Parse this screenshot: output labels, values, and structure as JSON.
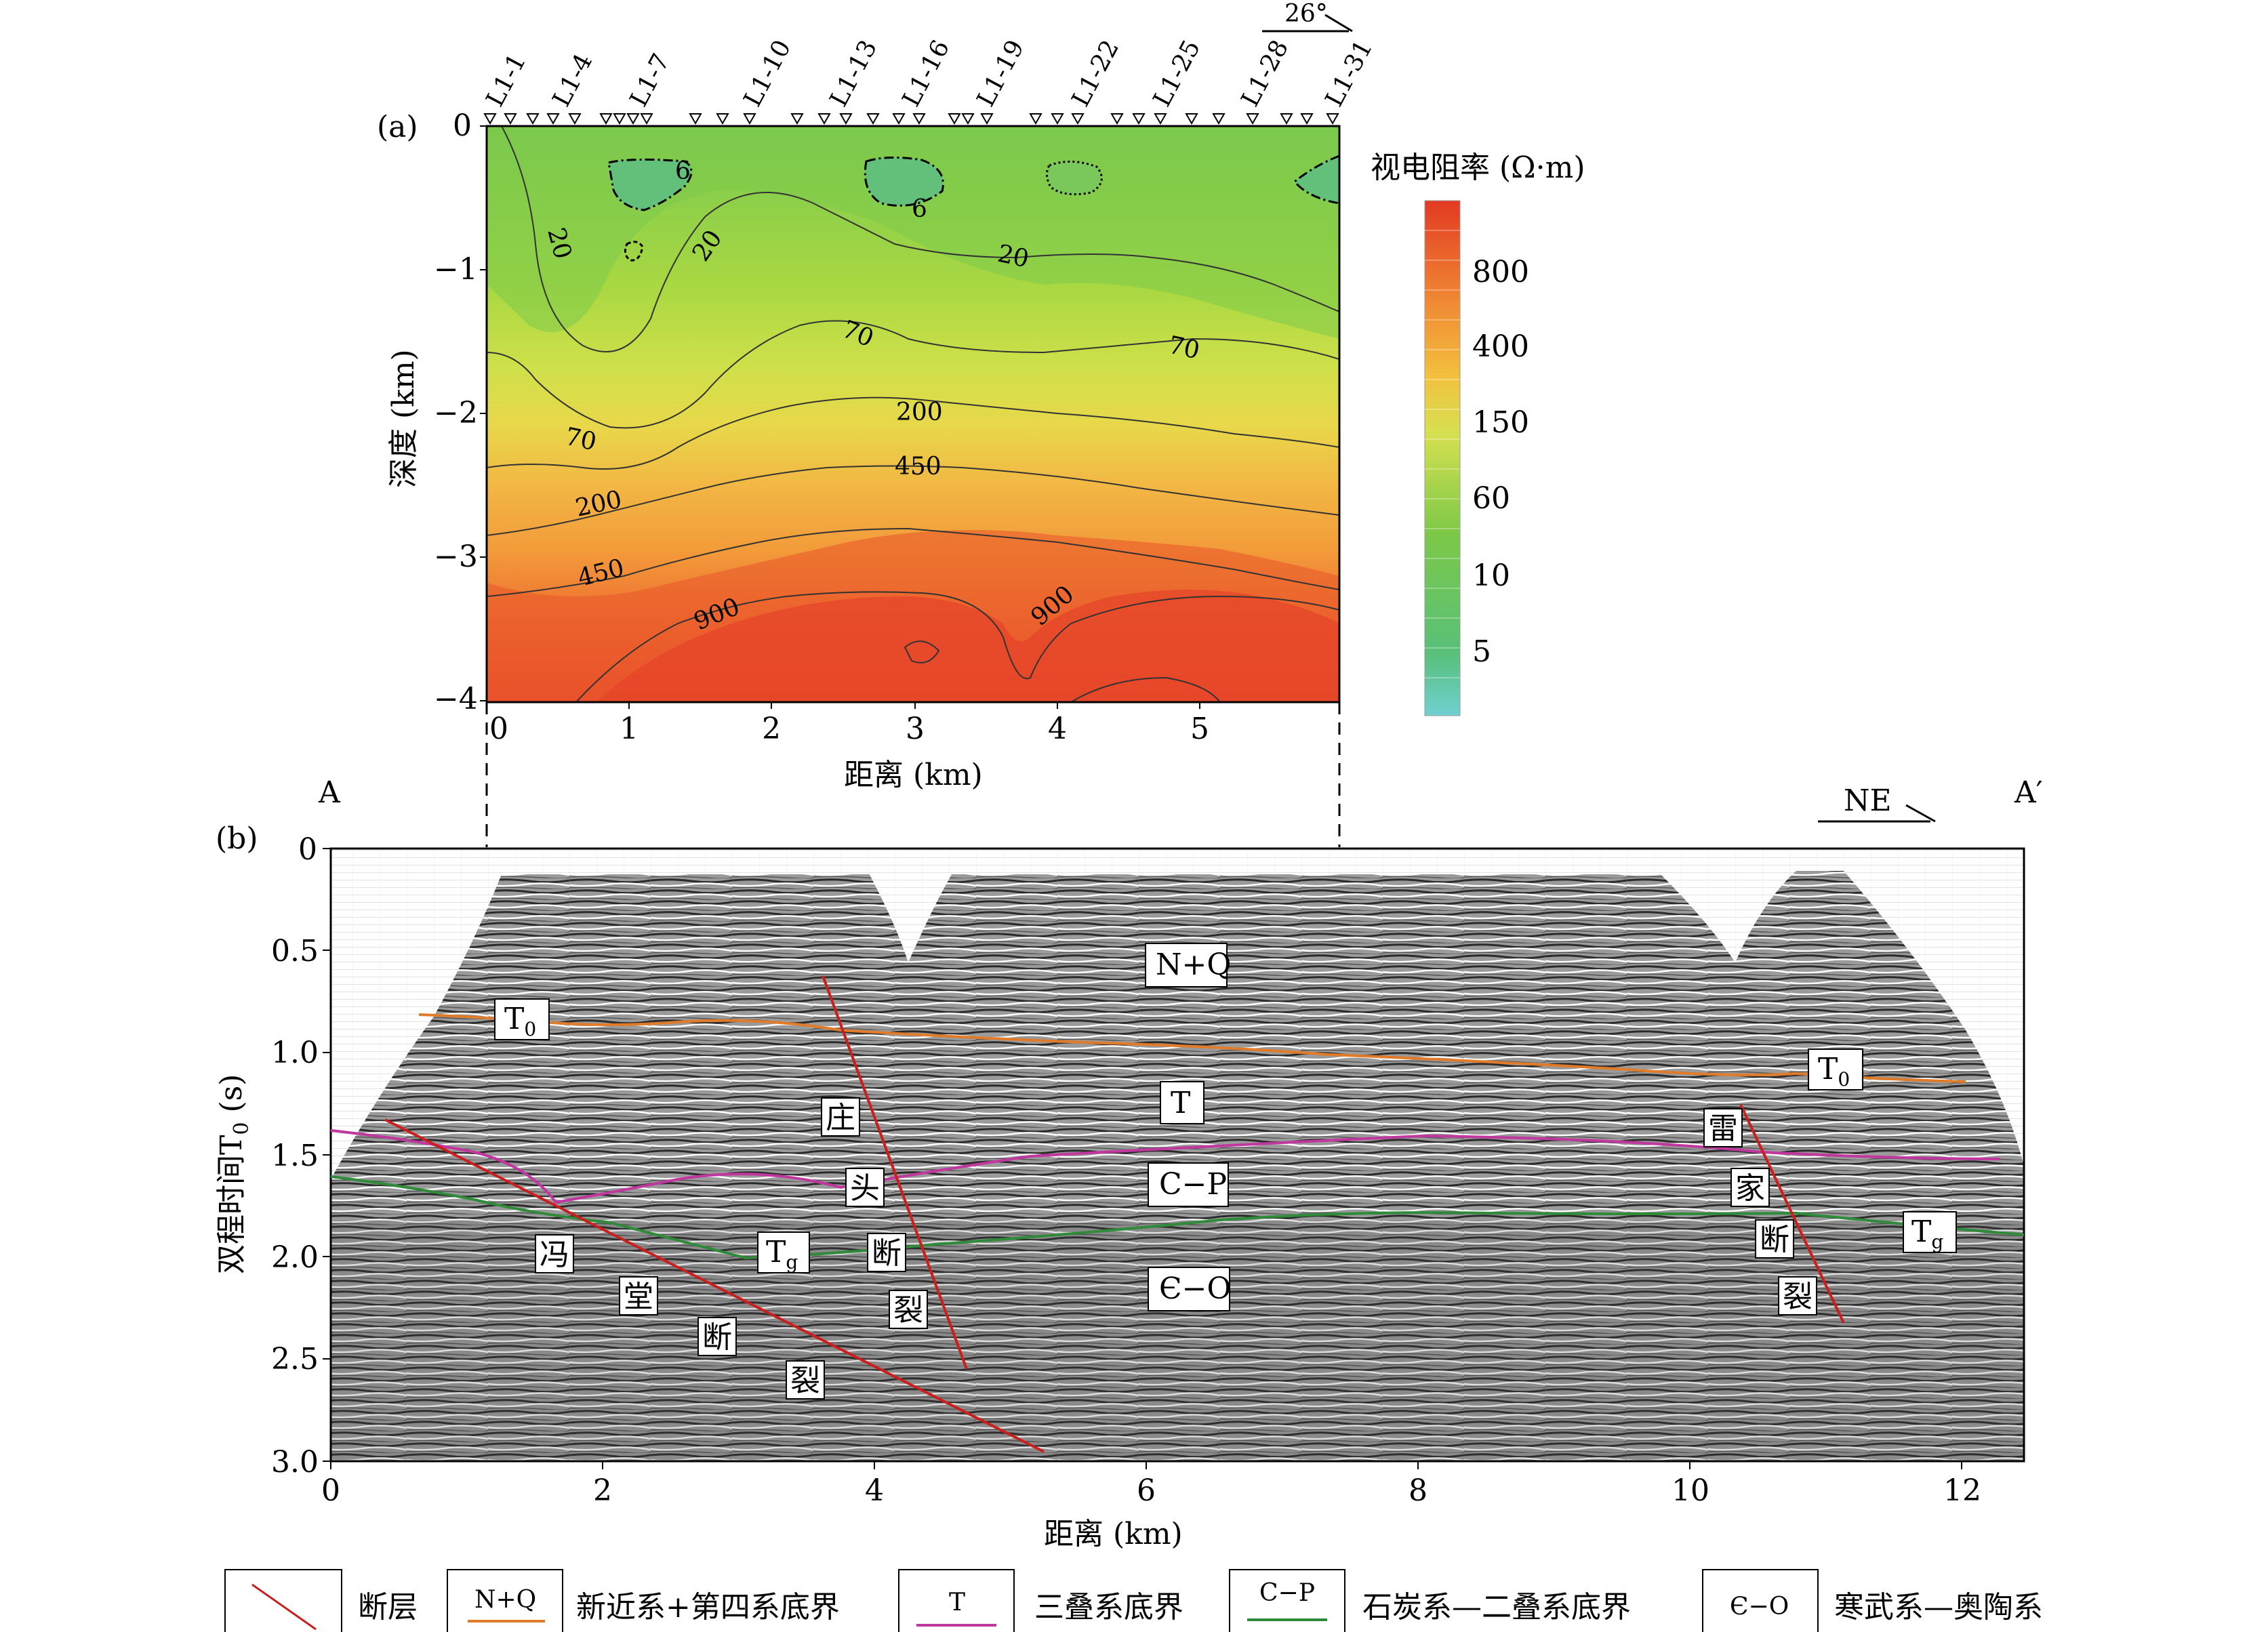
{
  "panel_a": {
    "label": "(a)",
    "orientation": "26°",
    "stations": [
      "L1-1",
      "L1-4",
      "L1-7",
      "L1-10",
      "L1-13",
      "L1-16",
      "L1-19",
      "L1-22",
      "L1-25",
      "L1-28",
      "L1-31"
    ],
    "y_label": "深度 (km)",
    "x_label": "距离 (km)",
    "y_ticks": [
      "0",
      "−1",
      "−2",
      "−3",
      "−4"
    ],
    "x_ticks": [
      "0",
      "1",
      "2",
      "3",
      "4",
      "5"
    ],
    "contour_labels": [
      "6",
      "6",
      "20",
      "20",
      "20",
      "70",
      "70",
      "70",
      "200",
      "200",
      "450",
      "450",
      "900",
      "900"
    ],
    "colorbar": {
      "title": "视电阻率 (Ω·m)",
      "ticks": [
        "800",
        "400",
        "150",
        "60",
        "10",
        "5"
      ]
    }
  },
  "panel_b": {
    "label": "(b)",
    "end_left": "A",
    "end_right": "A′",
    "direction": "NE",
    "y_label": "双程时间T",
    "y_label_sub": "0",
    "y_label_unit": " (s)",
    "x_label": "距离 (km)",
    "y_ticks": [
      "0",
      "0.5",
      "1.0",
      "1.5",
      "2.0",
      "2.5",
      "3.0"
    ],
    "x_ticks": [
      "0",
      "2",
      "4",
      "6",
      "8",
      "10",
      "12"
    ],
    "units": {
      "nq": "N+Q",
      "t": "T",
      "cp": "C−P",
      "co": "Є−O"
    },
    "horizon_labels": {
      "t0_main": "T",
      "t0_sub": "0",
      "tg_main": "T",
      "tg_sub": "g"
    },
    "fault_labels": {
      "fengtang": [
        "冯",
        "堂",
        "断",
        "裂"
      ],
      "zhuangtou": [
        "庄",
        "头",
        "断",
        "裂"
      ],
      "leijia": [
        "雷",
        "家",
        "断",
        "裂"
      ]
    }
  },
  "legend": [
    {
      "symbol": "",
      "text": "断层"
    },
    {
      "symbol": "N+Q",
      "text": "新近系+第四系底界",
      "color": "#e07b2a"
    },
    {
      "symbol": "T",
      "text": "三叠系底界",
      "color": "#c0389e"
    },
    {
      "symbol": "C−P",
      "text": "石炭系—二叠系底界",
      "color": "#2f8a3a"
    },
    {
      "symbol": "Є−O",
      "text": "寒武系—奥陶系"
    }
  ],
  "colors": {
    "fault": "#c8201e",
    "t0": "#e07b2a",
    "t": "#c0389e",
    "tg": "#2f8a3a"
  }
}
